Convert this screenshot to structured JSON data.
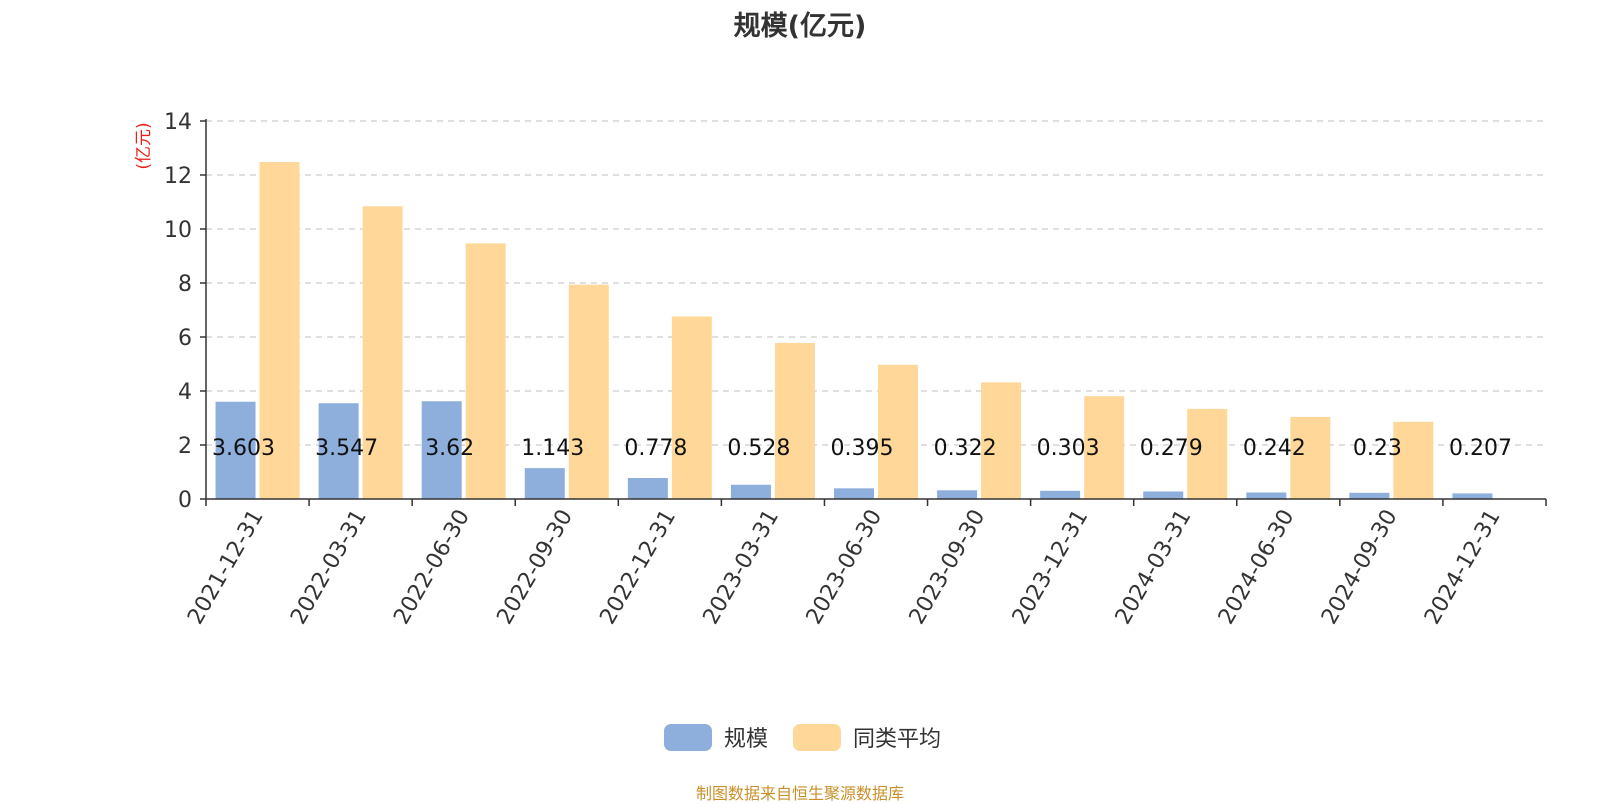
{
  "chart_data": {
    "type": "bar",
    "title": "规模(亿元)",
    "ylabel": "(亿元)",
    "ylim": [
      0,
      14
    ],
    "yticks": [
      "0",
      "2",
      "4",
      "6",
      "8",
      "10",
      "12",
      "14"
    ],
    "grid": true,
    "legend_position": "bottom",
    "categories": [
      "2021-12-31",
      "2022-03-31",
      "2022-06-30",
      "2022-09-30",
      "2022-12-31",
      "2023-03-31",
      "2023-06-30",
      "2023-09-30",
      "2023-12-31",
      "2024-03-31",
      "2024-06-30",
      "2024-09-30",
      "2024-12-31"
    ],
    "series": [
      {
        "name": "规模",
        "color": "#8eaedc",
        "values": [
          3.603,
          3.547,
          3.62,
          1.143,
          0.778,
          0.528,
          0.395,
          0.322,
          0.303,
          0.279,
          0.242,
          0.23,
          0.207
        ],
        "labels": [
          "3.603",
          "3.547",
          "3.62",
          "1.143",
          "0.778",
          "0.528",
          "0.395",
          "0.322",
          "0.303",
          "0.279",
          "0.242",
          "0.23",
          "0.207"
        ]
      },
      {
        "name": "同类平均",
        "color": "#ffd899",
        "values": [
          12.48,
          10.84,
          9.47,
          7.94,
          6.76,
          5.78,
          4.97,
          4.32,
          3.81,
          3.34,
          3.04,
          2.86,
          null
        ]
      }
    ]
  },
  "source_note": "制图数据来自恒生聚源数据库"
}
